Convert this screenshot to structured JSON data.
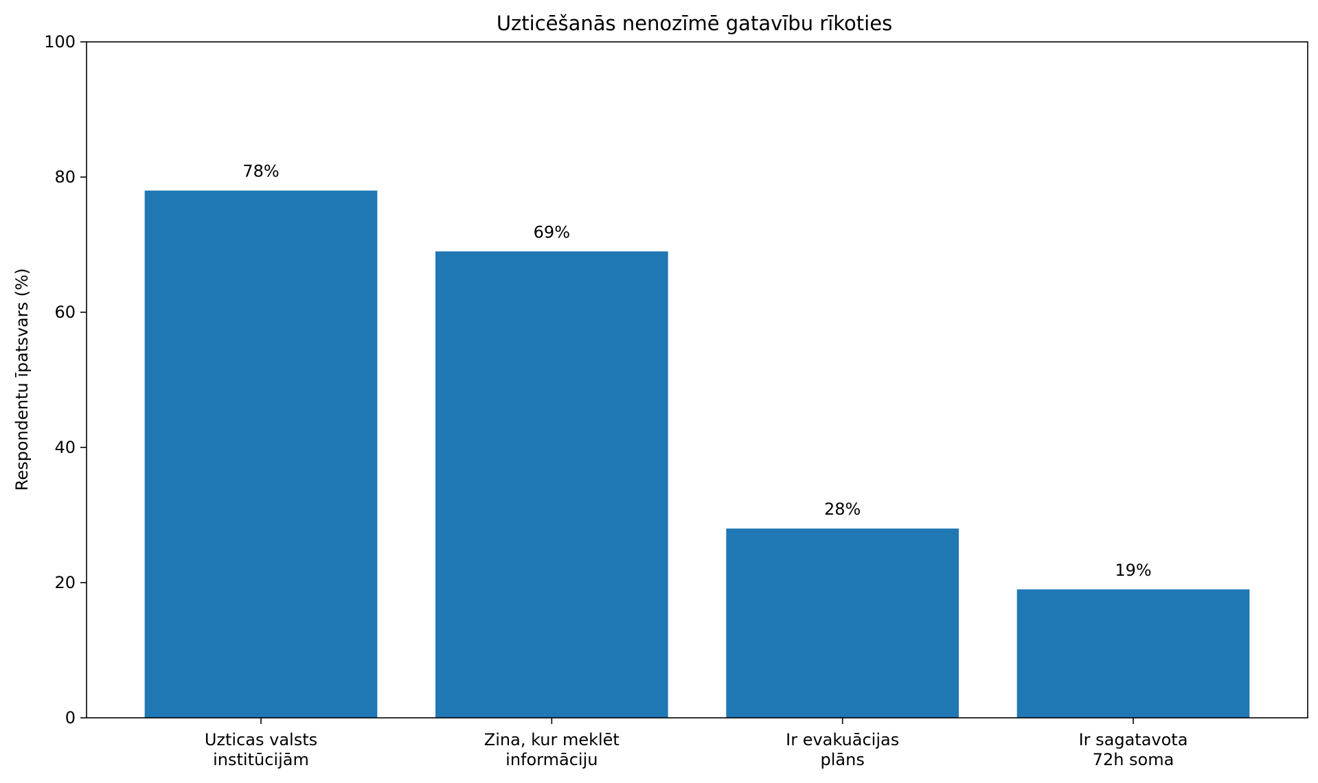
{
  "chart_data": {
    "type": "bar",
    "title": "Uzticēšanās nenozīmē gatavību rīkoties",
    "xlabel": "",
    "ylabel": "Respondentu īpatsvars (%)",
    "ylim": [
      0,
      100
    ],
    "yticks": [
      "0",
      "20",
      "40",
      "60",
      "80",
      "100"
    ],
    "categories": [
      [
        "Uzticas valsts",
        "institūcijām"
      ],
      [
        "Zina, kur meklēt",
        "informāciju"
      ],
      [
        "Ir evakuācijas",
        "plāns"
      ],
      [
        "Ir sagatavota",
        "72h soma"
      ]
    ],
    "values": [
      78,
      69,
      28,
      19
    ],
    "data_labels": [
      "78%",
      "69%",
      "28%",
      "19%"
    ],
    "bar_color": "#1f77b4",
    "grid": false,
    "legend": "none"
  }
}
